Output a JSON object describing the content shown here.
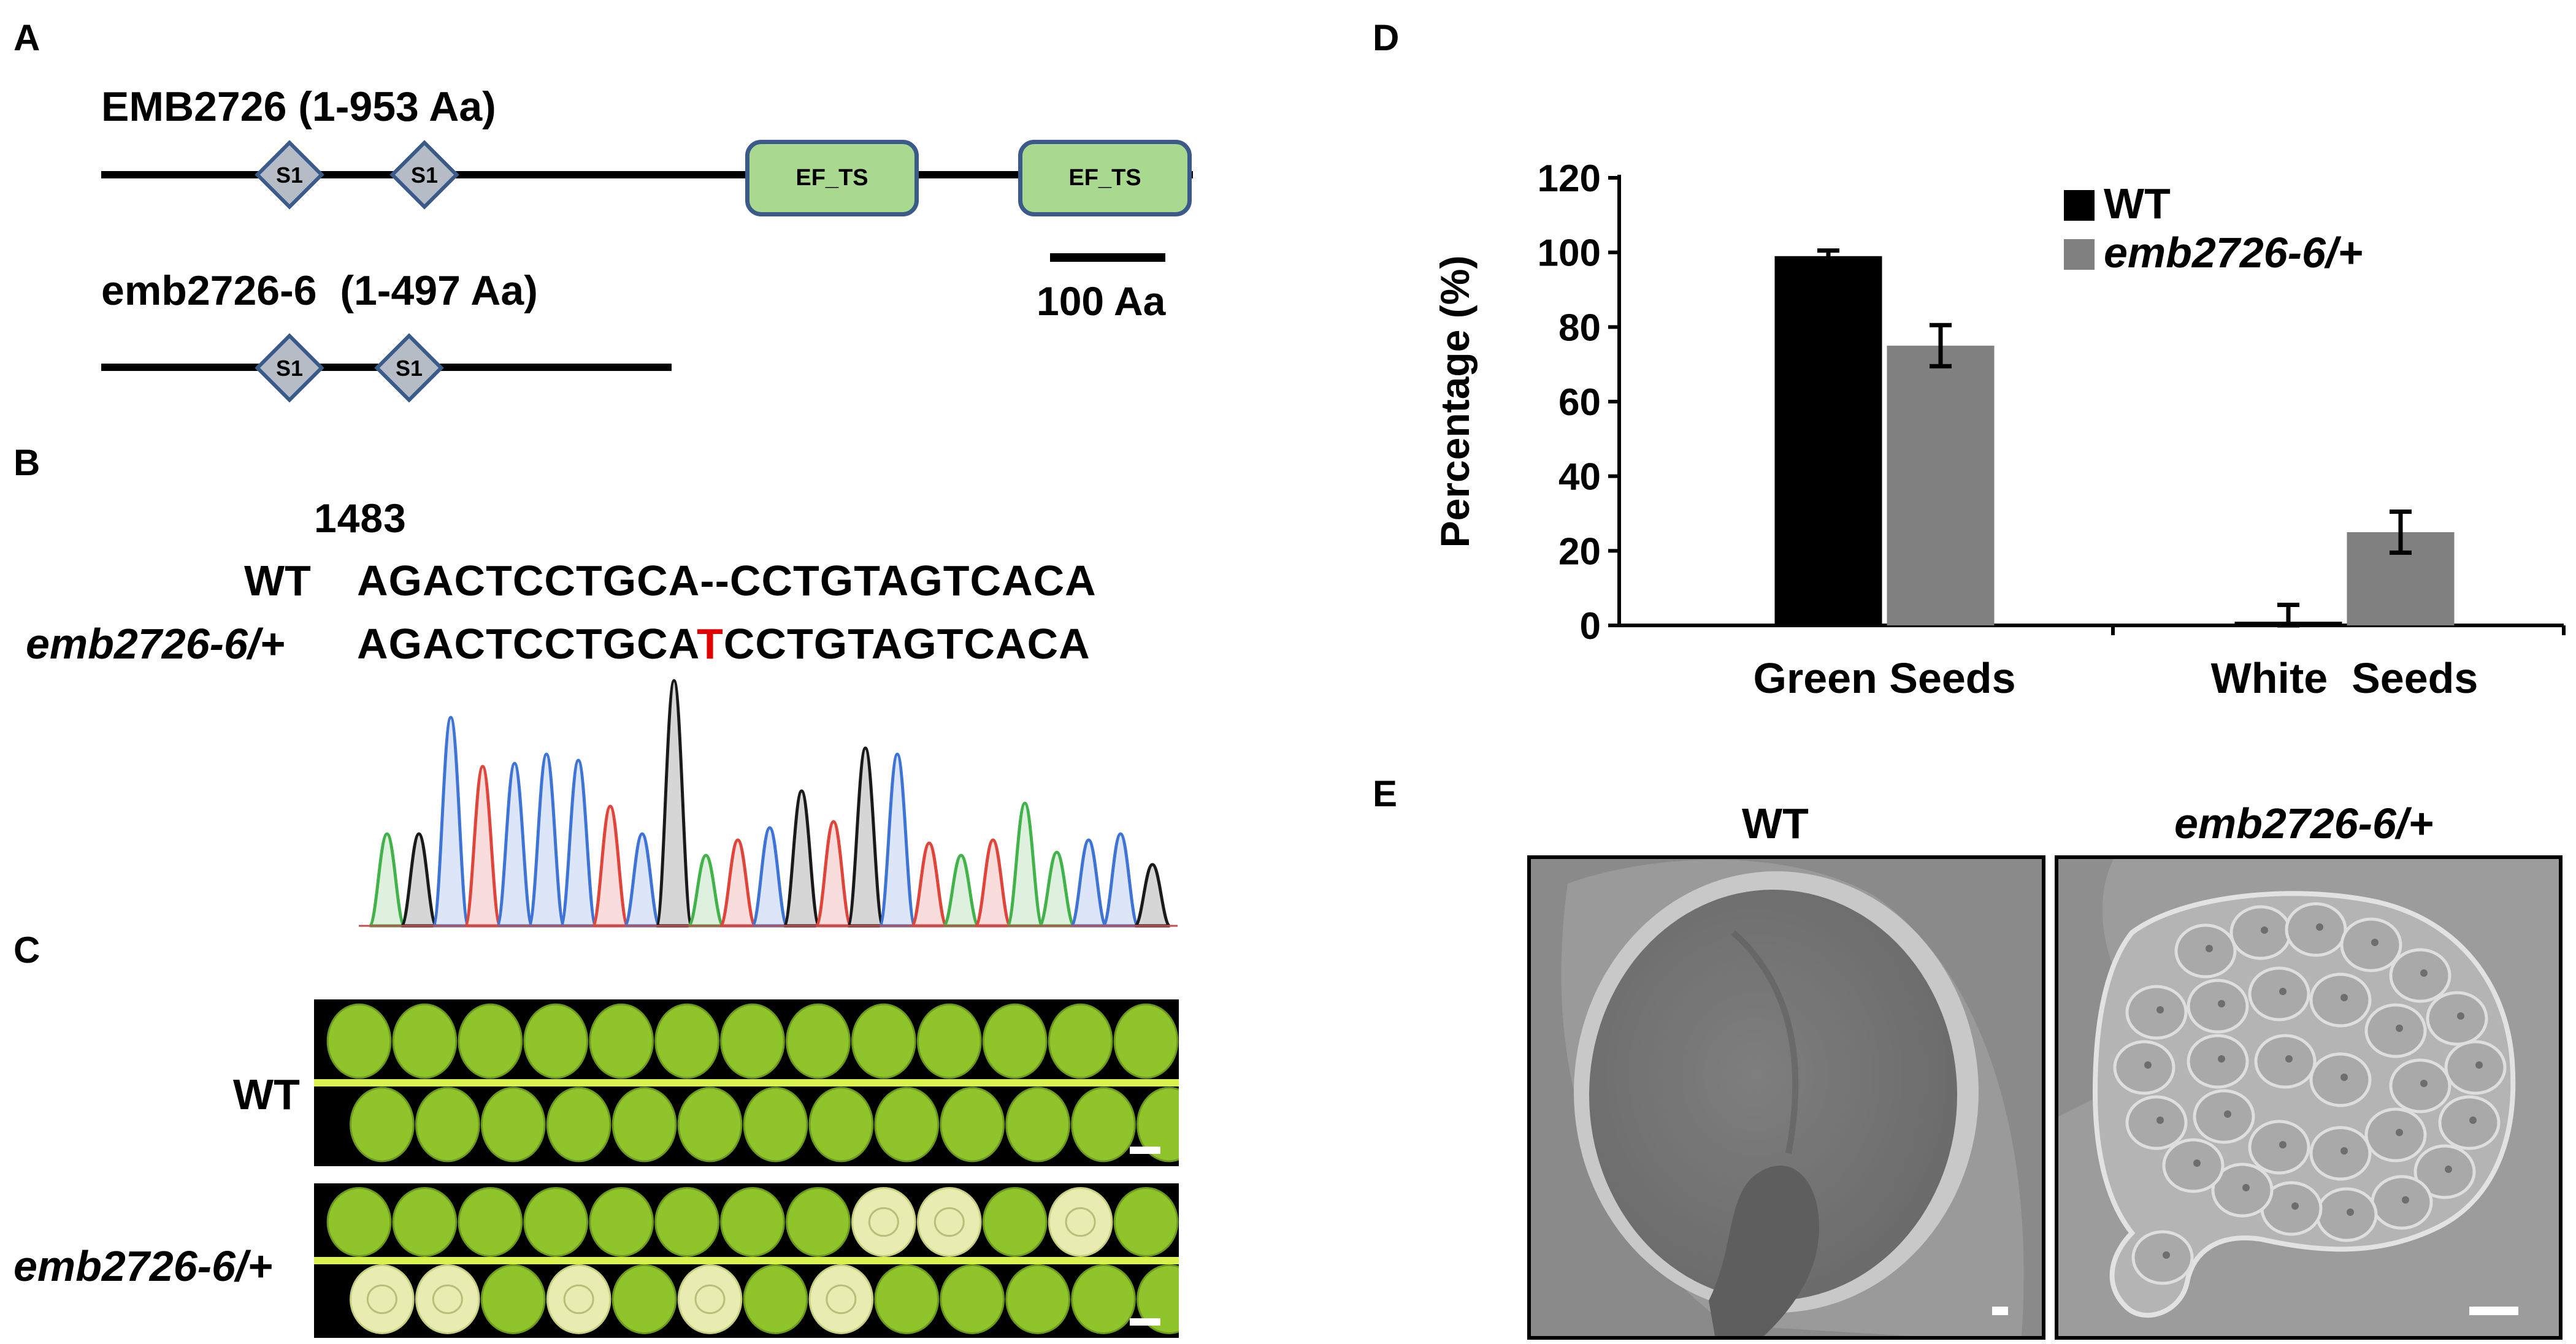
{
  "panels": {
    "A": "A",
    "B": "B",
    "C": "C",
    "D": "D",
    "E": "E"
  },
  "panel_a": {
    "full_title": "EMB2726 (1-953 Aa)",
    "mut_title": "emb2726-6  (1-497 Aa)",
    "domain_s1": "S1",
    "domain_ef": "EF_TS",
    "scale_label": "100 Aa"
  },
  "panel_b": {
    "position": "1483",
    "wt_label": "WT",
    "mut_label": "emb2726-6/+",
    "wt_seq": "AGACTCCTGCA--CCTGTAGTCACA",
    "mut_seq_before": "AGACTCCTGCA",
    "mut_seq_insert": "T",
    "mut_seq_after": "CCTGTAGTCACA",
    "insert_color": "#e00000"
  },
  "panel_c": {
    "wt_label": "WT",
    "mut_label": "emb2726-6/+"
  },
  "panel_e": {
    "wt_label": "WT",
    "mut_label": "emb2726-6/+"
  },
  "chart_data": {
    "type": "bar",
    "categories": [
      "Green Seeds",
      "White  Seeds"
    ],
    "series": [
      {
        "name": "WT",
        "values": [
          99,
          1
        ],
        "errors": [
          1.5,
          4.5
        ],
        "color": "#000000"
      },
      {
        "name": "emb2726-6/+",
        "values": [
          75,
          25
        ],
        "errors": [
          5.5,
          5.5
        ],
        "color": "#808080"
      }
    ],
    "ylabel": "Percentage (%)",
    "ylim": [
      0,
      120
    ],
    "yticks": [
      "0",
      "20",
      "40",
      "60",
      "80",
      "100",
      "120"
    ],
    "grid": false,
    "legend_position": "top-right"
  }
}
